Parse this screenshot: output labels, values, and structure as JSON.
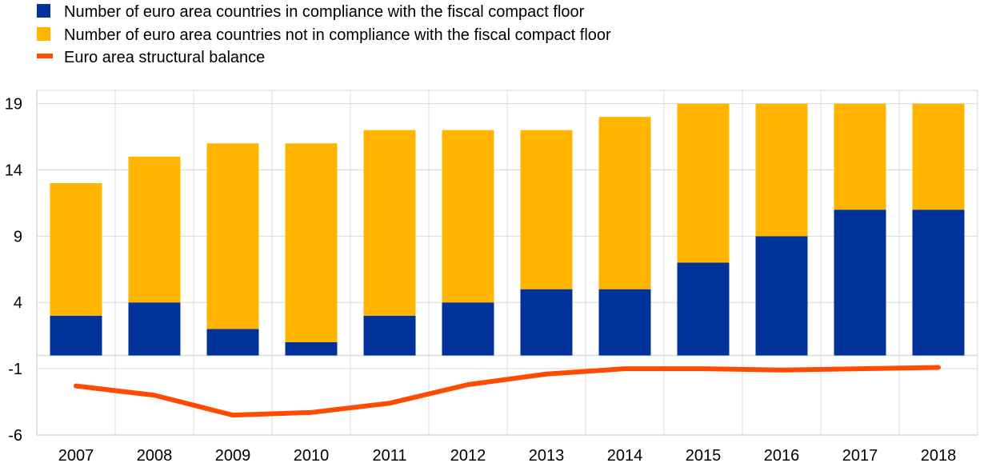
{
  "chart_data": {
    "type": "bar",
    "stacked": true,
    "categories": [
      "2007",
      "2008",
      "2009",
      "2010",
      "2011",
      "2012",
      "2013",
      "2014",
      "2015",
      "2016",
      "2017",
      "2018"
    ],
    "series": [
      {
        "name": "Number of euro area countries in compliance with the fiscal compact floor",
        "kind": "bar",
        "color": "#003299",
        "values": [
          3,
          4,
          2,
          1,
          3,
          4,
          5,
          5,
          7,
          9,
          11,
          11
        ]
      },
      {
        "name": "Number of euro area countries not in compliance with the fiscal compact floor",
        "kind": "bar",
        "color": "#ffb400",
        "values": [
          10,
          11,
          14,
          15,
          14,
          13,
          12,
          13,
          12,
          10,
          8,
          8
        ]
      },
      {
        "name": "Euro area structural balance",
        "kind": "line",
        "color": "#ff4b00",
        "values": [
          -2.3,
          -3.0,
          -4.5,
          -4.3,
          -3.6,
          -2.2,
          -1.4,
          -1.0,
          -1.0,
          -1.1,
          -1.0,
          -0.9
        ]
      }
    ],
    "yticks": [
      19,
      14,
      9,
      4,
      -1,
      -6
    ],
    "ylim": [
      -6,
      20
    ],
    "grid": true,
    "legend_position": "top-left"
  }
}
